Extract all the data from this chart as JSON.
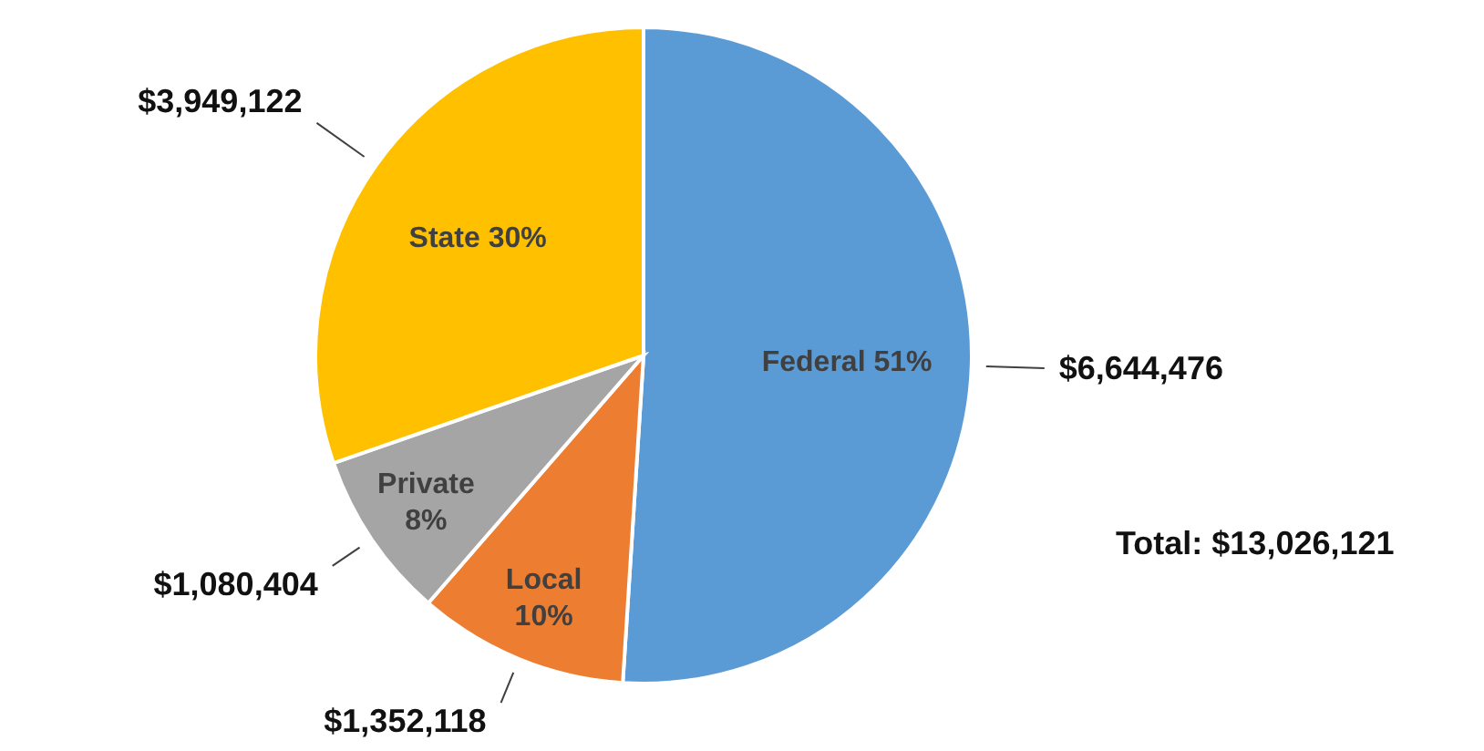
{
  "chart_data": {
    "type": "pie",
    "categories": [
      "Federal 51%",
      "Local 10%",
      "Private 8%",
      "State 30%"
    ],
    "values": [
      6644476,
      1352118,
      1080404,
      3949122
    ],
    "colors": [
      "#5b9bd5",
      "#ed7d31",
      "#a5a5a5",
      "#ffc000"
    ],
    "value_labels": [
      "$6,644,476",
      "$1,352,118",
      "$1,080,404",
      "$3,949,122"
    ],
    "annotations": [
      "Total: $13,026,121"
    ]
  }
}
